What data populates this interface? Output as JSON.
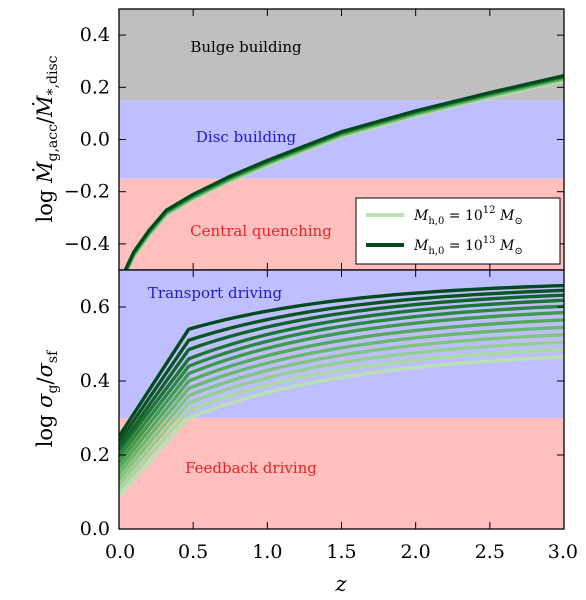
{
  "chart_data": [
    {
      "type": "line",
      "panel": "top",
      "ylabel": "log Ṁg,acc / Ṁ*,disc",
      "xlim": [
        0.0,
        3.0
      ],
      "ylim": [
        -0.5,
        0.5
      ],
      "yticks": [
        "0.4",
        "0.2",
        "0.0",
        "−0.2",
        "−0.4"
      ],
      "ytick_values": [
        0.4,
        0.2,
        0.0,
        -0.2,
        -0.4
      ],
      "grid": false,
      "regions": [
        {
          "name": "Bulge building",
          "ymin": 0.15,
          "ymax": 0.5,
          "color": "#bfbfbf",
          "label_color": "#000000"
        },
        {
          "name": "Disc building",
          "ymin": -0.15,
          "ymax": 0.15,
          "color": "#bfbfff",
          "label_color": "#1a1ad6"
        },
        {
          "name": "Central quenching",
          "ymin": -0.5,
          "ymax": -0.15,
          "color": "#ffbfbf",
          "label_color": "#ee2222"
        }
      ],
      "x": [
        0.0,
        0.05,
        0.1,
        0.2,
        0.32,
        0.5,
        0.75,
        1.0,
        1.5,
        2.0,
        2.5,
        3.0
      ],
      "series": [
        {
          "values": [
            -0.56,
            -0.5,
            -0.44,
            -0.36,
            -0.28,
            -0.22,
            -0.15,
            -0.09,
            0.02,
            0.1,
            0.17,
            0.235
          ],
          "color": "#b8e2b0"
        },
        {
          "values": [
            -0.56,
            -0.5,
            -0.44,
            -0.36,
            -0.28,
            -0.22,
            -0.15,
            -0.09,
            0.02,
            0.1,
            0.17,
            0.235
          ],
          "color": "#004a1e"
        }
      ],
      "legend": {
        "placement": "bottom-right",
        "entries": [
          {
            "label": "Mh,0 = 10^12 M⊙",
            "color": "#b8e2b0"
          },
          {
            "label": "Mh,0 = 10^13 M⊙",
            "color": "#004a1e"
          }
        ]
      }
    },
    {
      "type": "line",
      "panel": "bottom",
      "xlabel": "z",
      "ylabel": "log σg / σsf",
      "xlim": [
        0.0,
        3.0
      ],
      "ylim": [
        0.0,
        0.7
      ],
      "xticks": [
        "0.0",
        "0.5",
        "1.0",
        "1.5",
        "2.0",
        "2.5",
        "3.0"
      ],
      "xtick_values": [
        0.0,
        0.5,
        1.0,
        1.5,
        2.0,
        2.5,
        3.0
      ],
      "yticks": [
        "0.0",
        "0.2",
        "0.4",
        "0.6"
      ],
      "ytick_values": [
        0.0,
        0.2,
        0.4,
        0.6
      ],
      "grid": false,
      "regions": [
        {
          "name": "Transport driving",
          "ymin": 0.3,
          "ymax": 0.7,
          "color": "#bfbfff",
          "label_color": "#1a1ad6"
        },
        {
          "name": "Feedback driving",
          "ymin": 0.0,
          "ymax": 0.3,
          "color": "#ffbfbf",
          "label_color": "#ee2222"
        }
      ],
      "x_model": {
        "z_break": 0.47
      },
      "series": [
        {
          "y0": 0.09,
          "y_break": 0.3,
          "y_end": 0.465,
          "color": "#b8e2b0"
        },
        {
          "y0": 0.105,
          "y_break": 0.32,
          "y_end": 0.485,
          "color": "#a7d9a0"
        },
        {
          "y0": 0.12,
          "y_break": 0.34,
          "y_end": 0.505,
          "color": "#94cf8f"
        },
        {
          "y0": 0.135,
          "y_break": 0.36,
          "y_end": 0.525,
          "color": "#80c47d"
        },
        {
          "y0": 0.15,
          "y_break": 0.38,
          "y_end": 0.545,
          "color": "#6ab86b"
        },
        {
          "y0": 0.165,
          "y_break": 0.4,
          "y_end": 0.565,
          "color": "#54aa5a"
        },
        {
          "y0": 0.18,
          "y_break": 0.42,
          "y_end": 0.585,
          "color": "#3f9a4b"
        },
        {
          "y0": 0.195,
          "y_break": 0.44,
          "y_end": 0.602,
          "color": "#2c883e"
        },
        {
          "y0": 0.21,
          "y_break": 0.46,
          "y_end": 0.618,
          "color": "#1d7533"
        },
        {
          "y0": 0.22,
          "y_break": 0.485,
          "y_end": 0.632,
          "color": "#136229"
        },
        {
          "y0": 0.235,
          "y_break": 0.51,
          "y_end": 0.645,
          "color": "#0b5322"
        },
        {
          "y0": 0.25,
          "y_break": 0.54,
          "y_end": 0.658,
          "color": "#004a1e"
        }
      ]
    }
  ]
}
